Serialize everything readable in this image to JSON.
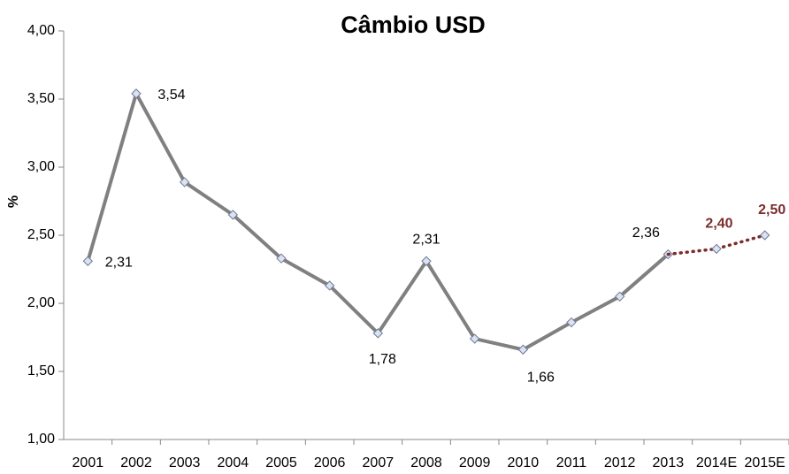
{
  "chart_data": {
    "type": "line",
    "title": "Câmbio USD",
    "y_label": "%",
    "categories": [
      "2001",
      "2002",
      "2003",
      "2004",
      "2005",
      "2006",
      "2007",
      "2008",
      "2009",
      "2010",
      "2011",
      "2012",
      "2013",
      "2014E",
      "2015E"
    ],
    "series": [
      {
        "color": "#808080",
        "style": "solid",
        "values": [
          2.31,
          3.54,
          2.89,
          2.65,
          2.33,
          2.13,
          1.78,
          2.31,
          1.74,
          1.66,
          1.86,
          2.05,
          2.36,
          null,
          null
        ],
        "value_labels": [
          "2,31",
          "3,54",
          null,
          null,
          null,
          null,
          "1,78",
          "2,31",
          null,
          "1,66",
          null,
          null,
          "2,36",
          null,
          null
        ]
      },
      {
        "color": "#7b2c2c",
        "style": "dotted",
        "values": [
          null,
          null,
          null,
          null,
          null,
          null,
          null,
          null,
          null,
          null,
          null,
          null,
          null,
          2.4,
          2.5
        ],
        "value_labels": [
          null,
          null,
          null,
          null,
          null,
          null,
          null,
          null,
          null,
          null,
          null,
          null,
          null,
          "2,40",
          "2,50"
        ]
      }
    ],
    "ylim": [
      1.0,
      4.0
    ],
    "yticks": [
      {
        "value": 1.0,
        "label": "1,00"
      },
      {
        "value": 1.5,
        "label": "1,50"
      },
      {
        "value": 2.0,
        "label": "2,00"
      },
      {
        "value": 2.5,
        "label": "2,50"
      },
      {
        "value": 3.0,
        "label": "3,00"
      },
      {
        "value": 3.5,
        "label": "3,50"
      },
      {
        "value": 4.0,
        "label": "4,00"
      }
    ],
    "grid": false
  }
}
